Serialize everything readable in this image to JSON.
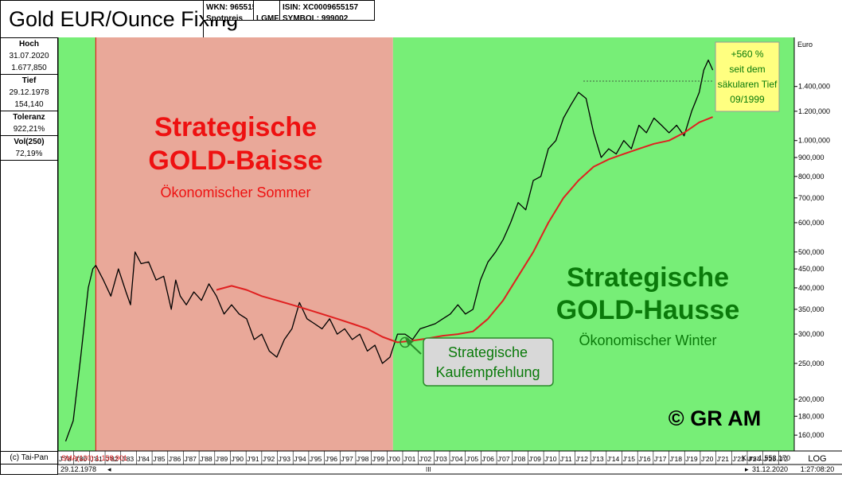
{
  "header": {
    "title": "Gold EUR/Ounce Fixing",
    "wkn": "WKN: 965515",
    "kind": "Spotpreis",
    "lgmf": "LGMF",
    "isin": "ISIN: XC0009655157",
    "symbol": "SYMBOL: 999002"
  },
  "stats": {
    "high_label": "Hoch",
    "high_date": "31.07.2020",
    "high_value": "1.677,850",
    "low_label": "Tief",
    "low_date": "29.12.1978",
    "low_value": "154,140",
    "tolerance_label": "Toleranz",
    "tolerance_value": "922,21%",
    "vol_label": "Vol(250)",
    "vol_value": "72,19%"
  },
  "footer": {
    "copyright": "(c) Tai-Pan",
    "start_date": "29.12.1978",
    "end_date": "31.12.2020",
    "scale": "LOG",
    "time": "1:27:08:20",
    "nav_left": "◂",
    "nav_mid": "III",
    "nav_right": "▸"
  },
  "colors": {
    "green_zone": "#77ee77",
    "red_zone": "#e9a899",
    "price_line": "#000000",
    "sma_line": "#e02020",
    "baisse_text": "#ee1111",
    "hausse_text": "#0a7a0a",
    "note_bg": "#ffff80"
  },
  "chart_data": {
    "type": "line",
    "title": "Gold EUR/Ounce Fixing",
    "ylabel": "Euro",
    "yscale": "log",
    "ylim": [
      145,
      1900
    ],
    "xlim": [
      1977.5,
      2026.3
    ],
    "y_ticks": [
      {
        "v": 160,
        "label": "160,000"
      },
      {
        "v": 180,
        "label": "180,000"
      },
      {
        "v": 200,
        "label": "200,000"
      },
      {
        "v": 250,
        "label": "250,000"
      },
      {
        "v": 300,
        "label": "300,000"
      },
      {
        "v": 350,
        "label": "350,000"
      },
      {
        "v": 400,
        "label": "400,000"
      },
      {
        "v": 450,
        "label": "450,000"
      },
      {
        "v": 500,
        "label": "500,000"
      },
      {
        "v": 600,
        "label": "600,000"
      },
      {
        "v": 700,
        "label": "700,000"
      },
      {
        "v": 800,
        "label": "800,000"
      },
      {
        "v": 900,
        "label": "900,000"
      },
      {
        "v": 1000,
        "label": "1.000,000"
      },
      {
        "v": 1200,
        "label": "1.200,000"
      },
      {
        "v": 1400,
        "label": "1.400,000"
      }
    ],
    "x_ticks": [
      "J'78",
      "J'80",
      "J'81",
      "J'82",
      "J'83",
      "J'84",
      "J'85",
      "J'86",
      "J'87",
      "J'88",
      "J'89",
      "J'90",
      "J'91",
      "J'92",
      "J'93",
      "J'94",
      "J'95",
      "J'96",
      "J'97",
      "J'98",
      "J'99",
      "J'00",
      "J'01",
      "J'02",
      "J'03",
      "J'04",
      "J'05",
      "J'06",
      "J'07",
      "J'08",
      "J'09",
      "J'10",
      "J'11",
      "J'12",
      "J'13",
      "J'14",
      "J'15",
      "J'16",
      "J'17",
      "J'18",
      "J'19",
      "J'20",
      "J'21",
      "J'23",
      "J'24",
      "J'25",
      "J'2"
    ],
    "zones": [
      {
        "type": "green",
        "from": 1977.5,
        "to": 1980.0
      },
      {
        "type": "red",
        "from": 1980.0,
        "to": 1999.7
      },
      {
        "type": "green",
        "from": 1999.7,
        "to": 2026.3
      }
    ],
    "series": [
      {
        "name": "Gold EUR/Ounce",
        "x": [
          1978.0,
          1978.5,
          1979.0,
          1979.5,
          1979.8,
          1980.0,
          1980.5,
          1981.0,
          1981.5,
          1982.0,
          1982.3,
          1982.6,
          1983.0,
          1983.5,
          1984.0,
          1984.5,
          1985.0,
          1985.3,
          1985.6,
          1986.0,
          1986.5,
          1987.0,
          1987.5,
          1988.0,
          1988.5,
          1989.0,
          1989.5,
          1990.0,
          1990.5,
          1991.0,
          1991.5,
          1992.0,
          1992.5,
          1993.0,
          1993.5,
          1994.0,
          1994.5,
          1995.0,
          1995.5,
          1996.0,
          1996.5,
          1997.0,
          1997.5,
          1998.0,
          1998.5,
          1999.0,
          1999.5,
          1999.7,
          2000.0,
          2000.5,
          2001.0,
          2001.5,
          2002.0,
          2002.5,
          2003.0,
          2003.5,
          2004.0,
          2004.5,
          2005.0,
          2005.5,
          2006.0,
          2006.5,
          2007.0,
          2007.5,
          2008.0,
          2008.5,
          2009.0,
          2009.5,
          2010.0,
          2010.5,
          2011.0,
          2011.5,
          2012.0,
          2012.5,
          2013.0,
          2013.5,
          2014.0,
          2014.5,
          2015.0,
          2015.5,
          2016.0,
          2016.5,
          2017.0,
          2017.5,
          2018.0,
          2018.5,
          2019.0,
          2019.5,
          2020.0,
          2020.3,
          2020.6,
          2020.9
        ],
        "y": [
          154,
          175,
          260,
          400,
          450,
          460,
          420,
          380,
          450,
          390,
          360,
          500,
          465,
          470,
          420,
          430,
          350,
          420,
          380,
          360,
          390,
          370,
          410,
          380,
          340,
          360,
          340,
          330,
          290,
          300,
          270,
          260,
          290,
          310,
          365,
          330,
          320,
          310,
          330,
          300,
          310,
          290,
          300,
          270,
          280,
          250,
          260,
          275,
          300,
          300,
          290,
          310,
          315,
          320,
          330,
          340,
          360,
          340,
          350,
          420,
          470,
          500,
          540,
          600,
          680,
          650,
          780,
          800,
          950,
          1000,
          1150,
          1250,
          1350,
          1300,
          1050,
          900,
          950,
          920,
          1000,
          950,
          1100,
          1050,
          1150,
          1100,
          1050,
          1100,
          1030,
          1200,
          1350,
          1550,
          1650,
          1550
        ]
      },
      {
        "name": "SMA(120)",
        "x": [
          1988.0,
          1989.0,
          1990.0,
          1991.0,
          1992.0,
          1993.0,
          1994.0,
          1995.0,
          1996.0,
          1997.0,
          1998.0,
          1999.0,
          2000.0,
          2001.0,
          2002.0,
          2003.0,
          2004.0,
          2005.0,
          2006.0,
          2007.0,
          2008.0,
          2009.0,
          2010.0,
          2011.0,
          2012.0,
          2013.0,
          2014.0,
          2015.0,
          2016.0,
          2017.0,
          2018.0,
          2019.0,
          2020.0,
          2020.9
        ],
        "y": [
          395,
          405,
          395,
          380,
          370,
          360,
          350,
          340,
          330,
          320,
          310,
          295,
          285,
          288,
          292,
          297,
          300,
          305,
          330,
          370,
          430,
          500,
          600,
          700,
          780,
          850,
          890,
          920,
          950,
          980,
          1000,
          1050,
          1120,
          1158
        ]
      }
    ],
    "annotations": {
      "baisse_title_1": "Strategische",
      "baisse_title_2": "GOLD-Baisse",
      "baisse_sub": "Ökonomischer Sommer",
      "hausse_title_1": "Strategische",
      "hausse_title_2": "GOLD-Hausse",
      "hausse_sub": "Ökonomischer Winter",
      "buy_1": "Strategische",
      "buy_2": "Kaufempfehlung",
      "note_1": "+560 %",
      "note_2": "seit dem",
      "note_3": "säkularen Tief",
      "note_4": "09/1999",
      "brand": "© GR AM",
      "sma_label": "SMA(120):1.158,901",
      "kurs_label": "Kurs:1.553,170",
      "unit": "Euro"
    }
  }
}
